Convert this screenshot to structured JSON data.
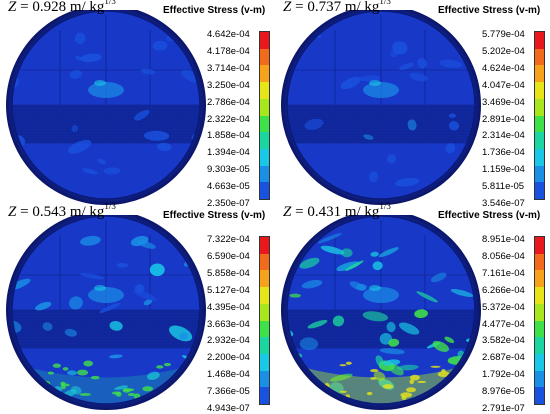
{
  "figure": {
    "panels": [
      {
        "z_prefix": "Z = ",
        "z_value": "0.928",
        "z_unit": " m/ kg",
        "z_exp": "1/3",
        "legend_title": "Effective Stress (v-m)",
        "legend_ticks": [
          "4.642e-04",
          "4.178e-04",
          "3.714e-04",
          "3.250e-04",
          "2.786e-04",
          "2.322e-04",
          "1.858e-04",
          "1.394e-04",
          "9.303e-05",
          "4.663e-05",
          "2.350e-07"
        ],
        "intensity": 0.15
      },
      {
        "z_prefix": "Z = ",
        "z_value": "0.737",
        "z_unit": " m/ kg",
        "z_exp": "1/3",
        "legend_title": "Effective Stress (v-m)",
        "legend_ticks": [
          "5.779e-04",
          "5.202e-04",
          "4.624e-04",
          "4.047e-04",
          "3.469e-04",
          "2.891e-04",
          "2.314e-04",
          "1.736e-04",
          "1.159e-04",
          "5.811e-05",
          "3.546e-07"
        ],
        "intensity": 0.2
      },
      {
        "z_prefix": "Z = ",
        "z_value": "0.543",
        "z_unit": " m/ kg",
        "z_exp": "1/3",
        "legend_title": "Effective Stress (v-m)",
        "legend_ticks": [
          "7.322e-04",
          "6.590e-04",
          "5.858e-04",
          "5.127e-04",
          "4.395e-04",
          "3.663e-04",
          "2.932e-04",
          "2.200e-04",
          "1.468e-04",
          "7.366e-05",
          "4.943e-07"
        ],
        "intensity": 0.45
      },
      {
        "z_prefix": "Z = ",
        "z_value": "0.431",
        "z_unit": " m/ kg",
        "z_exp": "1/3",
        "legend_title": "Effective Stress (v-m)",
        "legend_ticks": [
          "8.951e-04",
          "8.056e-04",
          "7.161e-04",
          "6.266e-04",
          "5.372e-04",
          "4.477e-04",
          "3.582e-04",
          "2.687e-04",
          "1.792e-04",
          "8.976e-05",
          "2.791e-07"
        ],
        "intensity": 0.8
      }
    ],
    "colormap": [
      "#e8181c",
      "#f26b1d",
      "#f7a21b",
      "#e5e51a",
      "#a8e61d",
      "#3fe14a",
      "#1bd6a0",
      "#19c8e6",
      "#1a8fe6",
      "#1a52e0",
      "#1a1ad0"
    ],
    "colors": {
      "background": "#ffffff",
      "shell_dark": "#0a1466",
      "shell_mid": "#1530a8",
      "field_base": "#1838c8"
    }
  }
}
